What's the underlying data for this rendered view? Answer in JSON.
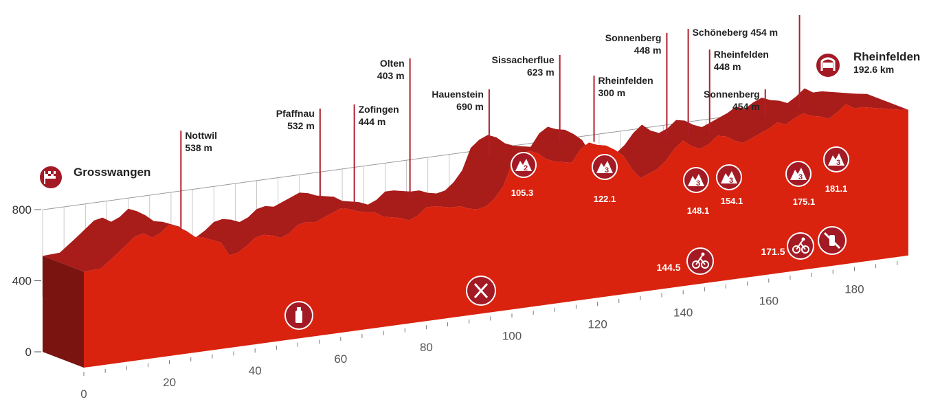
{
  "chart_data": {
    "type": "area",
    "title": "",
    "xlabel": "",
    "ylabel": "",
    "xlim": [
      0,
      192.6
    ],
    "ylim": [
      0,
      800
    ],
    "x_ticks": [
      "0",
      "20",
      "40",
      "60",
      "80",
      "100",
      "120",
      "140",
      "160",
      "180"
    ],
    "y_ticks": [
      "0",
      "400",
      "800"
    ],
    "profile": [
      [
        0,
        540
      ],
      [
        4,
        545
      ],
      [
        8,
        620
      ],
      [
        12,
        700
      ],
      [
        14,
        710
      ],
      [
        16,
        680
      ],
      [
        18,
        700
      ],
      [
        20,
        740
      ],
      [
        22,
        720
      ],
      [
        24,
        690
      ],
      [
        26,
        650
      ],
      [
        28,
        640
      ],
      [
        30,
        620
      ],
      [
        32,
        600
      ],
      [
        34,
        520
      ],
      [
        36,
        530
      ],
      [
        38,
        560
      ],
      [
        40,
        600
      ],
      [
        42,
        610
      ],
      [
        44,
        600
      ],
      [
        46,
        580
      ],
      [
        48,
        600
      ],
      [
        50,
        640
      ],
      [
        52,
        650
      ],
      [
        54,
        640
      ],
      [
        56,
        660
      ],
      [
        58,
        680
      ],
      [
        60,
        700
      ],
      [
        62,
        690
      ],
      [
        64,
        670
      ],
      [
        66,
        660
      ],
      [
        68,
        650
      ],
      [
        70,
        620
      ],
      [
        72,
        610
      ],
      [
        74,
        600
      ],
      [
        76,
        580
      ],
      [
        78,
        600
      ],
      [
        80,
        640
      ],
      [
        82,
        640
      ],
      [
        84,
        630
      ],
      [
        86,
        620
      ],
      [
        88,
        620
      ],
      [
        90,
        600
      ],
      [
        92,
        590
      ],
      [
        94,
        600
      ],
      [
        96,
        640
      ],
      [
        98,
        700
      ],
      [
        100,
        820
      ],
      [
        102,
        860
      ],
      [
        104,
        880
      ],
      [
        106,
        860
      ],
      [
        108,
        820
      ],
      [
        110,
        800
      ],
      [
        112,
        790
      ],
      [
        114,
        780
      ],
      [
        116,
        850
      ],
      [
        118,
        880
      ],
      [
        120,
        860
      ],
      [
        122,
        850
      ],
      [
        124,
        820
      ],
      [
        126,
        780
      ],
      [
        128,
        700
      ],
      [
        130,
        640
      ],
      [
        132,
        660
      ],
      [
        134,
        680
      ],
      [
        136,
        720
      ],
      [
        138,
        780
      ],
      [
        140,
        820
      ],
      [
        142,
        780
      ],
      [
        144,
        760
      ],
      [
        146,
        780
      ],
      [
        148,
        820
      ],
      [
        150,
        810
      ],
      [
        152,
        780
      ],
      [
        154,
        760
      ],
      [
        156,
        780
      ],
      [
        158,
        800
      ],
      [
        160,
        820
      ],
      [
        162,
        850
      ],
      [
        164,
        830
      ],
      [
        166,
        860
      ],
      [
        168,
        880
      ],
      [
        170,
        860
      ],
      [
        172,
        850
      ],
      [
        174,
        830
      ],
      [
        176,
        860
      ],
      [
        178,
        900
      ],
      [
        180,
        870
      ],
      [
        182,
        870
      ],
      [
        184,
        860
      ],
      [
        186,
        850
      ],
      [
        188,
        840
      ],
      [
        190,
        830
      ],
      [
        192.6,
        820
      ]
    ],
    "landmarks": [
      {
        "km": 0,
        "label": "Grosswangen"
      },
      {
        "km": 27.5,
        "label": "Nottwil",
        "altitude": "538 m"
      },
      {
        "km": 60,
        "label": "Pfaffnau",
        "altitude": "532 m"
      },
      {
        "km": 68,
        "label": "Zofingen",
        "altitude": "444 m"
      },
      {
        "km": 81,
        "label": "Olten",
        "altitude": "403 m"
      },
      {
        "km": 99.5,
        "label": "Hauenstein",
        "altitude": "690 m"
      },
      {
        "km": 116,
        "label": "Sissacherflue",
        "altitude": "623 m"
      },
      {
        "km": 124,
        "label": "Rheinfelden",
        "altitude": "300 m"
      },
      {
        "km": 141,
        "label": "Sonnenberg",
        "altitude": "448 m"
      },
      {
        "km": 146,
        "label": "Schöneberg",
        "altitude": "454 m"
      },
      {
        "km": 151,
        "label": "Rheinfelden",
        "altitude": "448 m"
      },
      {
        "km": 164,
        "label": "Sonnenberg",
        "altitude": "454 m"
      },
      {
        "km": 172,
        "label": "Rheinfelden",
        "altitude": "192.6 km"
      }
    ],
    "climbs": [
      {
        "km": 105.3,
        "label": "105.3",
        "category": "2"
      },
      {
        "km": 122.1,
        "label": "122.1",
        "category": "3"
      },
      {
        "km": 148.1,
        "label": "148.1",
        "category": "3"
      },
      {
        "km": 154.1,
        "label": "154.1",
        "category": "3"
      },
      {
        "km": 175.1,
        "label": "175.1",
        "category": "3"
      },
      {
        "km": 181.1,
        "label": "181.1",
        "category": "3"
      }
    ],
    "markers": [
      {
        "km": 144.5,
        "label": "144.5",
        "icon": "cyclist-icon"
      },
      {
        "km": 171.5,
        "label": "171.5",
        "icon": "cyclist-icon"
      }
    ],
    "colors": {
      "fill": "#d9230f",
      "top": "#a81c1a",
      "dark": "#7a1410",
      "badge": "#a31a25"
    }
  }
}
